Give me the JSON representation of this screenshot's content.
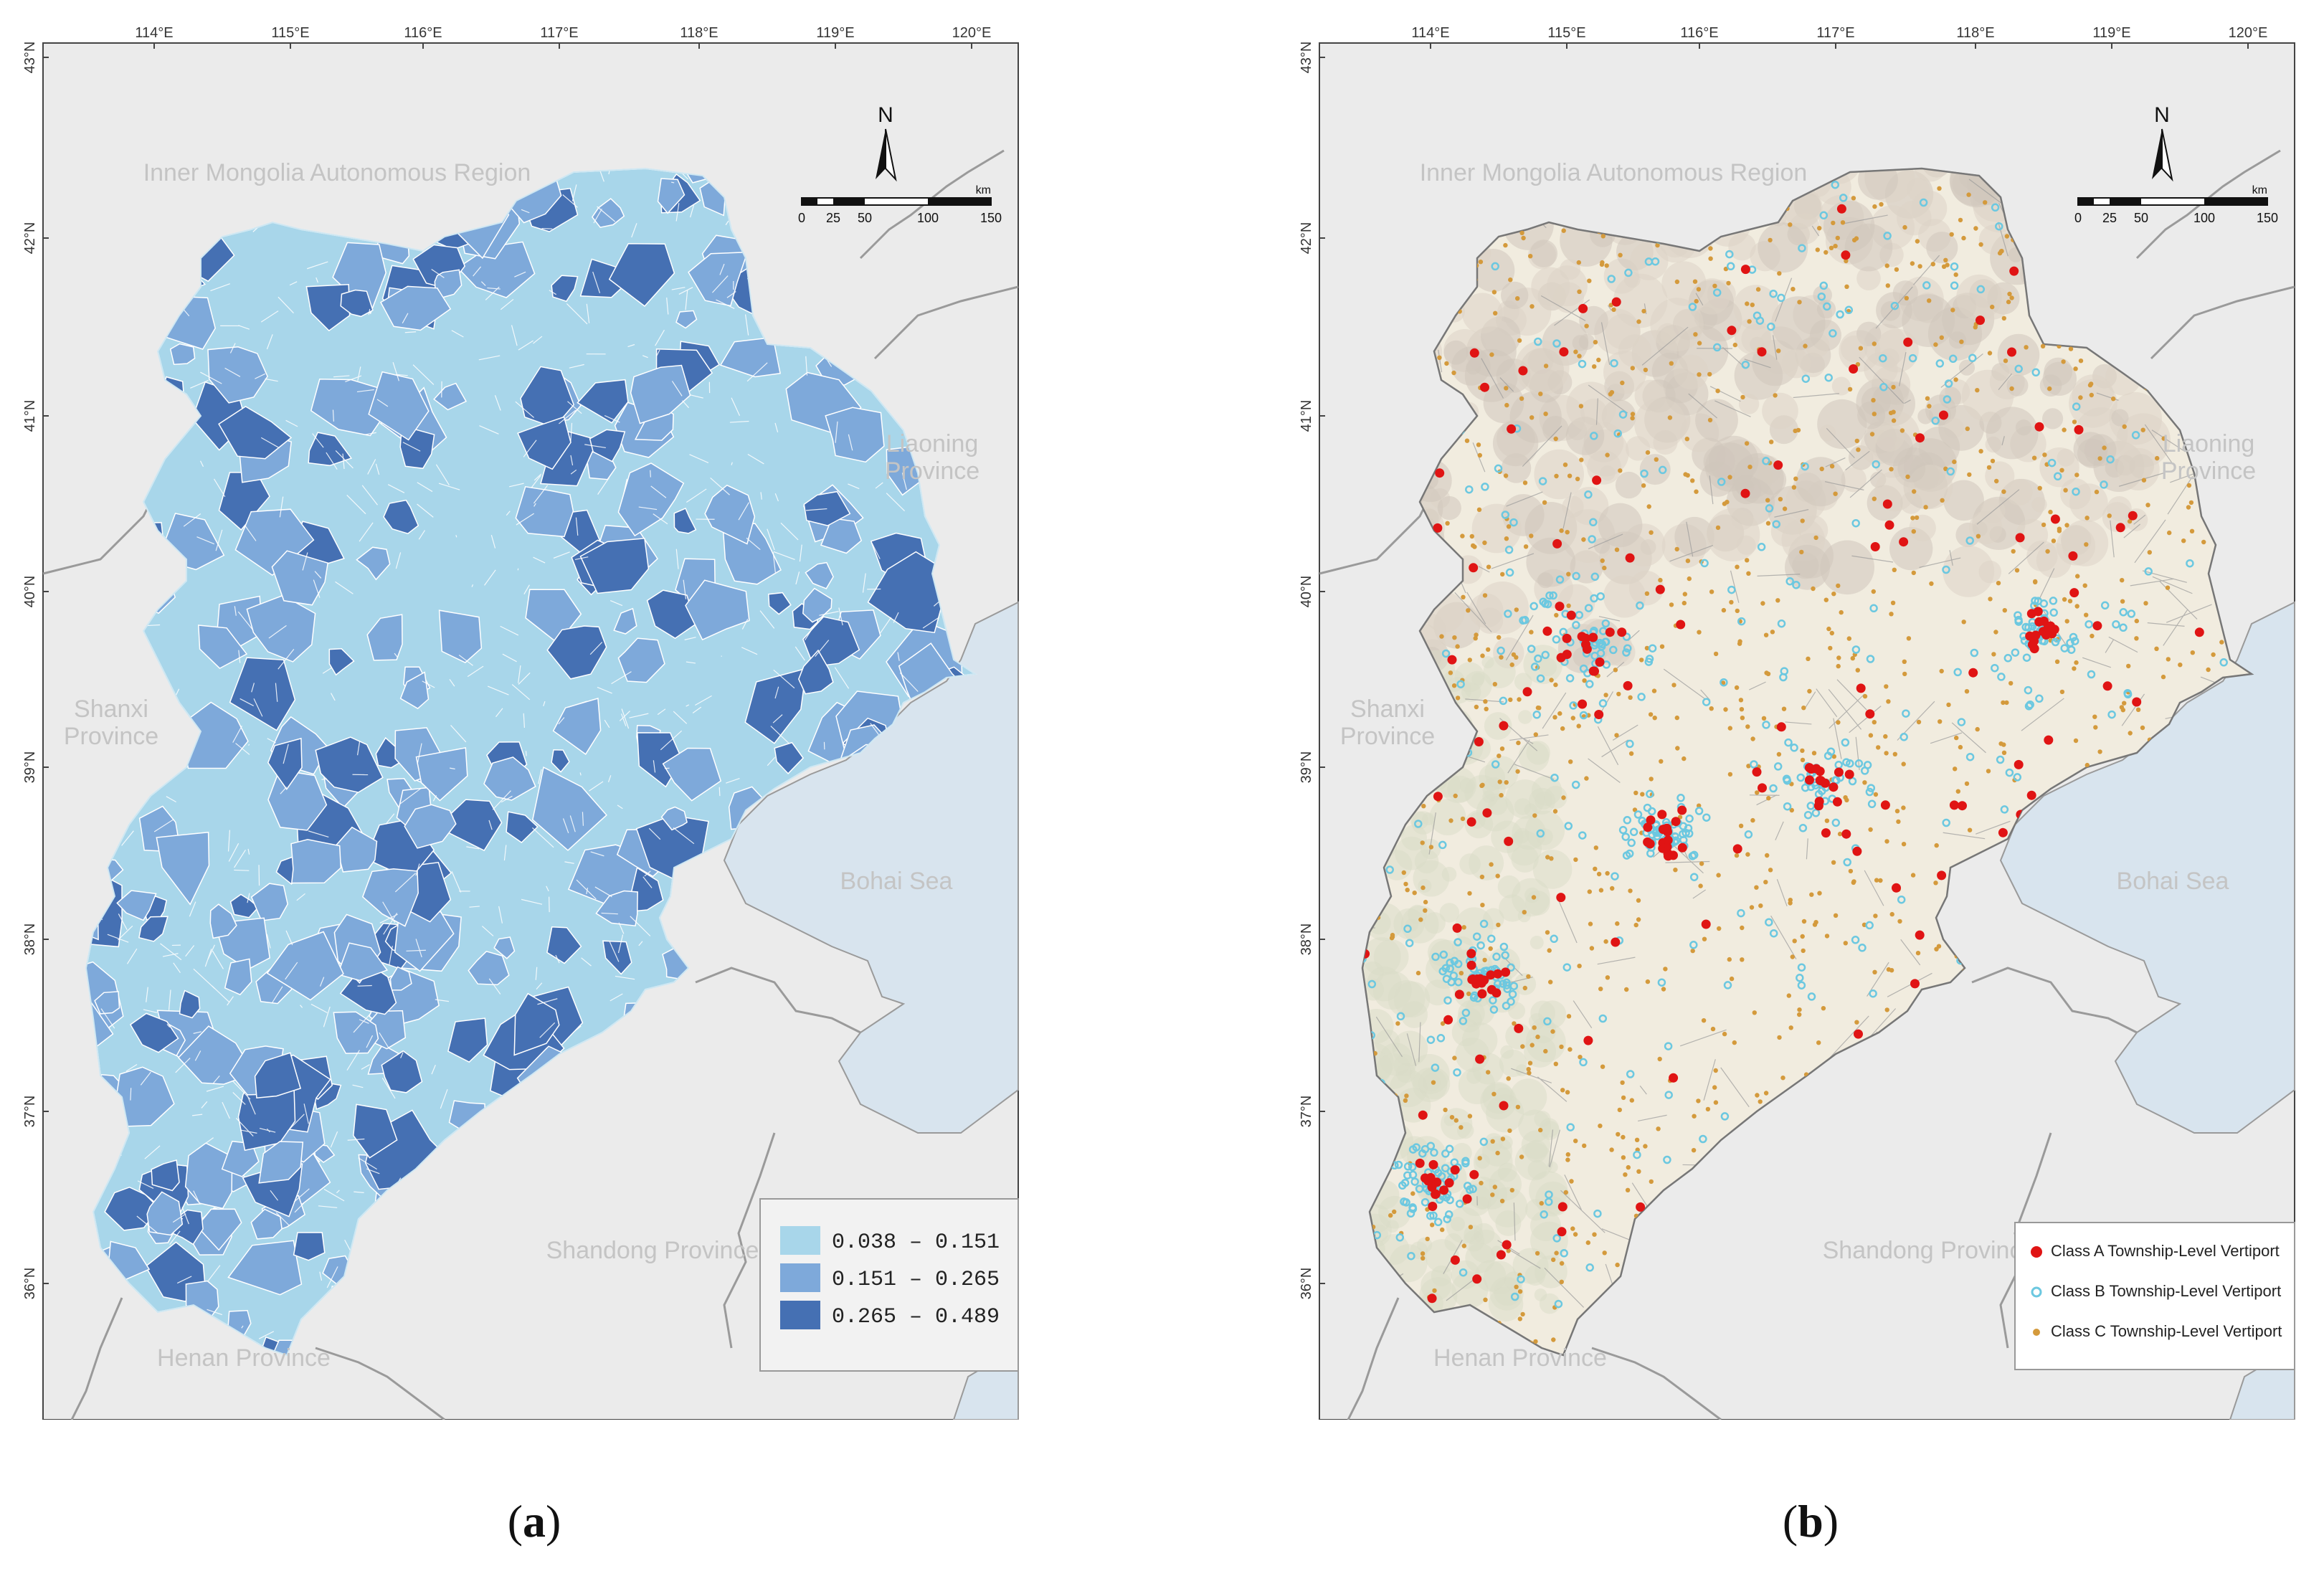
{
  "figure": {
    "panels": [
      {
        "id": "a",
        "caption_letter": "a",
        "lon_labels": [
          "114°E",
          "115°E",
          "116°E",
          "117°E",
          "118°E",
          "119°E",
          "120°E"
        ],
        "lat_labels": [
          "43°N",
          "42°N",
          "41°N",
          "40°N",
          "39°N",
          "38°N",
          "37°N",
          "36°N"
        ],
        "regions": [
          {
            "name": "Inner Mongolia Autonomous Region"
          },
          {
            "name": "Liaoning\nProvince"
          },
          {
            "name": "Shanxi\nProvince"
          },
          {
            "name": "Bohai Sea"
          },
          {
            "name": "Shandong Province"
          },
          {
            "name": "Henan Province"
          }
        ],
        "scale": {
          "unit": "km",
          "ticks": [
            "0",
            "25",
            "50",
            "100",
            "150"
          ]
        },
        "north": "N",
        "legend": [
          {
            "label": "0.038  –  0.151",
            "color": "#a8d6ea"
          },
          {
            "label": "0.151  –  0.265",
            "color": "#7ea9da"
          },
          {
            "label": "0.265  –  0.489",
            "color": "#4570b3"
          }
        ]
      },
      {
        "id": "b",
        "caption_letter": "b",
        "lon_labels": [
          "114°E",
          "115°E",
          "116°E",
          "117°E",
          "118°E",
          "119°E",
          "120°E"
        ],
        "lat_labels": [
          "43°N",
          "42°N",
          "41°N",
          "40°N",
          "39°N",
          "38°N",
          "37°N",
          "36°N"
        ],
        "regions": [
          {
            "name": "Inner Mongolia Autonomous Region"
          },
          {
            "name": "Liaoning\nProvince"
          },
          {
            "name": "Shanxi\nProvince"
          },
          {
            "name": "Bohai Sea"
          },
          {
            "name": "Shandong Province"
          },
          {
            "name": "Henan Province"
          }
        ],
        "scale": {
          "unit": "km",
          "ticks": [
            "0",
            "25",
            "50",
            "100",
            "150"
          ]
        },
        "north": "N",
        "legend": [
          {
            "label": "Class A Township-Level Vertiport",
            "color": "#e01414"
          },
          {
            "label": "Class B Township-Level Vertiport",
            "color": "#6cc8e0"
          },
          {
            "label": "Class C Township-Level Vertiport",
            "color": "#d49a3c"
          }
        ]
      }
    ]
  },
  "colors": {
    "frame_bg": "#ebebeb",
    "sea": "#d8e4ee",
    "border": "#9a9a9a",
    "label": "#c4c4c4",
    "terrain_b": "#f1ecdf"
  }
}
